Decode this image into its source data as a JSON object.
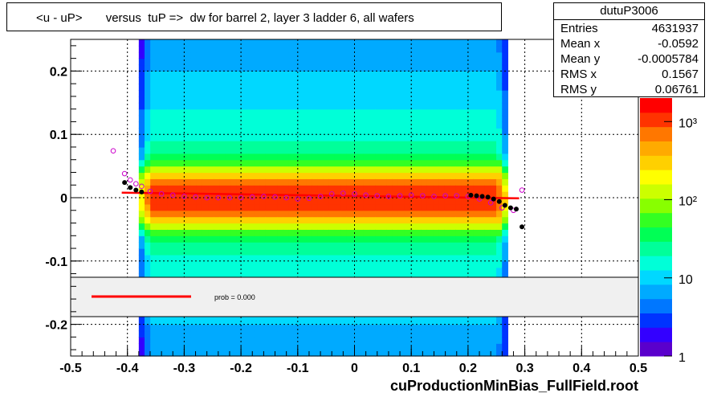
{
  "header": {
    "title": "<u - uP>       versus  tuP =>  dw for barrel 2, layer 3 ladder 6, all wafers"
  },
  "stats": {
    "name": "dutuP3006",
    "rows": [
      {
        "label": "Entries",
        "value": "4631937"
      },
      {
        "label": "Mean x",
        "value": "-0.0592"
      },
      {
        "label": "Mean y",
        "value": "-0.0005784"
      },
      {
        "label": "RMS x",
        "value": "0.1567"
      },
      {
        "label": "RMS y",
        "value": "0.06761"
      }
    ]
  },
  "legend": {
    "prob_label": "prob = 0.000"
  },
  "x_title": "cuProductionMinBias_FullField.root",
  "colors": {
    "fit_line": "#ff0000",
    "profile_points": "#000000",
    "alt_points": "#cc00cc",
    "legend_fill": "#f0f0f0"
  },
  "chart_data": {
    "type": "heatmap",
    "xlim": [
      -0.5,
      0.5
    ],
    "ylim": [
      -0.25,
      0.25
    ],
    "x_ticks": [
      -0.5,
      -0.4,
      -0.3,
      -0.2,
      -0.1,
      0,
      0.1,
      0.2,
      0.3,
      0.4,
      0.5
    ],
    "x_tick_labels": [
      "-0.5",
      "-0.4",
      "-0.3",
      "-0.2",
      "-0.1",
      "0",
      "0.1",
      "0.2",
      "0.3",
      "0.4",
      "0.5"
    ],
    "y_ticks": [
      -0.2,
      -0.1,
      0,
      0.1,
      0.2
    ],
    "y_tick_labels": [
      "-0.2",
      "-0.1",
      "0",
      "0.1",
      "0.2"
    ],
    "grid": true,
    "log_z": true,
    "z_ticks": [
      1,
      10,
      100,
      1000
    ],
    "z_tick_labels": [
      "1",
      "10",
      "10²",
      "10³"
    ],
    "z_range": [
      1,
      2000
    ],
    "band_x_range": [
      -0.38,
      0.27
    ],
    "fit_line": {
      "x": [
        -0.41,
        0.29
      ],
      "y": [
        0.008,
        -0.001
      ]
    },
    "profile_points": [
      {
        "x": -0.405,
        "y": 0.024
      },
      {
        "x": -0.395,
        "y": 0.016
      },
      {
        "x": -0.385,
        "y": 0.012
      },
      {
        "x": -0.375,
        "y": 0.009
      },
      {
        "x": 0.205,
        "y": 0.004
      },
      {
        "x": 0.215,
        "y": 0.003
      },
      {
        "x": 0.225,
        "y": 0.002
      },
      {
        "x": 0.235,
        "y": 0.001
      },
      {
        "x": 0.245,
        "y": -0.002
      },
      {
        "x": 0.255,
        "y": -0.006
      },
      {
        "x": 0.265,
        "y": -0.012
      },
      {
        "x": 0.275,
        "y": -0.016
      },
      {
        "x": 0.285,
        "y": -0.018
      },
      {
        "x": 0.295,
        "y": -0.046
      }
    ],
    "alt_points": [
      {
        "x": -0.425,
        "y": 0.074
      },
      {
        "x": -0.405,
        "y": 0.038
      },
      {
        "x": -0.395,
        "y": 0.028
      },
      {
        "x": -0.385,
        "y": 0.022
      },
      {
        "x": -0.375,
        "y": 0.018
      },
      {
        "x": -0.36,
        "y": 0.01
      },
      {
        "x": -0.34,
        "y": 0.006
      },
      {
        "x": -0.32,
        "y": 0.004
      },
      {
        "x": -0.3,
        "y": 0.002
      },
      {
        "x": -0.28,
        "y": 0.001
      },
      {
        "x": -0.26,
        "y": 0.0
      },
      {
        "x": -0.24,
        "y": 0.0
      },
      {
        "x": -0.22,
        "y": 0.0
      },
      {
        "x": -0.2,
        "y": 0.0
      },
      {
        "x": -0.18,
        "y": 0.001
      },
      {
        "x": -0.16,
        "y": 0.002
      },
      {
        "x": -0.14,
        "y": 0.001
      },
      {
        "x": -0.12,
        "y": 0.0
      },
      {
        "x": -0.1,
        "y": -0.002
      },
      {
        "x": -0.08,
        "y": -0.001
      },
      {
        "x": -0.06,
        "y": 0.002
      },
      {
        "x": -0.04,
        "y": 0.006
      },
      {
        "x": -0.02,
        "y": 0.007
      },
      {
        "x": 0.0,
        "y": 0.006
      },
      {
        "x": 0.02,
        "y": 0.004
      },
      {
        "x": 0.04,
        "y": 0.003
      },
      {
        "x": 0.06,
        "y": 0.002
      },
      {
        "x": 0.08,
        "y": 0.003
      },
      {
        "x": 0.1,
        "y": 0.004
      },
      {
        "x": 0.12,
        "y": 0.003
      },
      {
        "x": 0.14,
        "y": 0.002
      },
      {
        "x": 0.16,
        "y": 0.003
      },
      {
        "x": 0.18,
        "y": 0.003
      },
      {
        "x": 0.2,
        "y": 0.002
      },
      {
        "x": 0.22,
        "y": -0.002
      },
      {
        "x": 0.24,
        "y": -0.008
      },
      {
        "x": 0.26,
        "y": -0.016
      },
      {
        "x": 0.28,
        "y": -0.02
      },
      {
        "x": 0.295,
        "y": 0.012
      }
    ]
  }
}
